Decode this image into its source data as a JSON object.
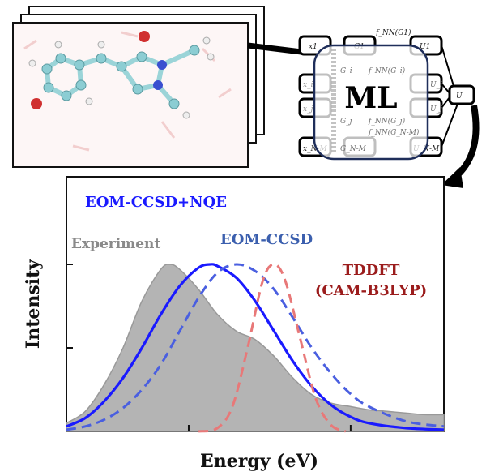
{
  "illustration": {
    "ml_label": "ML",
    "network_nodes": {
      "inputs": [
        "x1",
        "x_i",
        "x_j",
        "x_N-M"
      ],
      "descriptors": [
        "G1",
        "G_i",
        "G_j",
        "G_N-M"
      ],
      "functions": [
        "f_NN(G1)",
        "f_NN(G_i)",
        "f_NN(G_j)",
        "f_NN(G_N-M)"
      ],
      "outputs": [
        "U1",
        "U_i",
        "U_j",
        "U_N-M"
      ],
      "total": "U"
    }
  },
  "colors": {
    "experiment": "#b4b4b4",
    "eom_nqe": "#1a1aff",
    "eom": "#4a5fe0",
    "tddft": "#e87878",
    "tddft_label": "#9b1c1c",
    "eom_label": "#3b5fae"
  },
  "chart_data": {
    "type": "line",
    "xlabel": "Energy (eV)",
    "ylabel": "Intensity",
    "xlim": [
      0,
      100
    ],
    "ylim": [
      0,
      1
    ],
    "x_ticks": [
      32.4,
      75.3
    ],
    "y_ticks": [
      0.5,
      1.0
    ],
    "grid": false,
    "series": [
      {
        "name": "Experiment",
        "style": "filled-area",
        "x": [
          0,
          5,
          10,
          15,
          20,
          25,
          27.5,
          30,
          35,
          40,
          45,
          50,
          55,
          60,
          65,
          70,
          75,
          80,
          85,
          90,
          95,
          100
        ],
        "y": [
          0.05,
          0.12,
          0.28,
          0.5,
          0.78,
          0.97,
          1,
          0.97,
          0.85,
          0.7,
          0.6,
          0.55,
          0.45,
          0.32,
          0.22,
          0.17,
          0.15,
          0.13,
          0.12,
          0.11,
          0.1,
          0.1
        ]
      },
      {
        "name": "EOM-CCSD+NQE",
        "style": "solid",
        "x": [
          0,
          5,
          10,
          15,
          20,
          25,
          30,
          35,
          38,
          40,
          45,
          50,
          55,
          60,
          65,
          70,
          75,
          80,
          90,
          100
        ],
        "y": [
          0.03,
          0.08,
          0.18,
          0.32,
          0.5,
          0.7,
          0.87,
          0.98,
          1,
          0.99,
          0.92,
          0.78,
          0.6,
          0.42,
          0.27,
          0.16,
          0.09,
          0.05,
          0.02,
          0.01
        ]
      },
      {
        "name": "EOM-CCSD",
        "style": "dashed",
        "x": [
          0,
          5,
          10,
          15,
          20,
          25,
          30,
          35,
          40,
          45,
          50,
          55,
          60,
          65,
          70,
          75,
          80,
          90,
          100
        ],
        "y": [
          0.01,
          0.03,
          0.07,
          0.14,
          0.25,
          0.4,
          0.6,
          0.8,
          0.95,
          1,
          0.96,
          0.85,
          0.68,
          0.5,
          0.35,
          0.23,
          0.15,
          0.06,
          0.03
        ]
      },
      {
        "name": "TDDFT (CAM-B3LYP)",
        "style": "dashed",
        "x": [
          35,
          40,
          44,
          48,
          52,
          55,
          58,
          62,
          66,
          70,
          74
        ],
        "y": [
          0,
          0.02,
          0.15,
          0.5,
          0.9,
          1,
          0.9,
          0.55,
          0.2,
          0.04,
          0
        ]
      }
    ],
    "legend": {
      "eom_nqe": "EOM-CCSD+NQE",
      "eom": "EOM-CCSD",
      "experiment": "Experiment",
      "tddft_1": "TDDFT",
      "tddft_2": "(CAM-B3LYP)"
    }
  }
}
